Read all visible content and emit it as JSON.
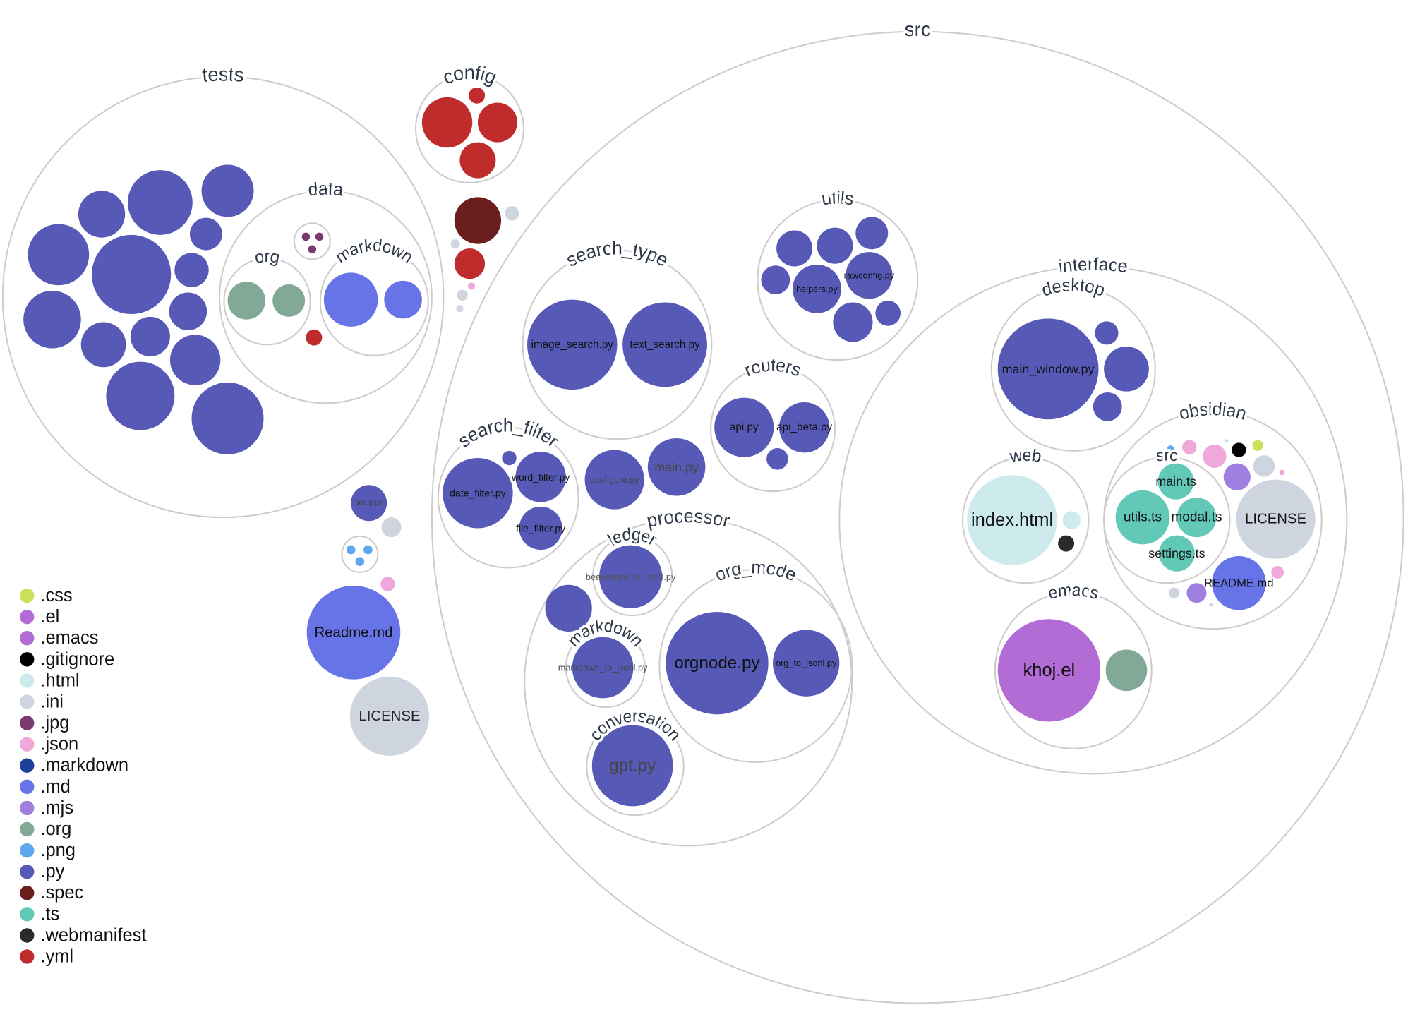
{
  "folders": {
    "tests": "tests",
    "data": "data",
    "data_org": "org",
    "data_markdown": "markdown",
    "config": "config",
    "src": "src",
    "search_type": "search_type",
    "utils": "utils",
    "routers": "routers",
    "search_filter": "search_filter",
    "processor": "processor",
    "ledger": "ledger",
    "proc_markdown": "markdown",
    "org_mode": "org_mode",
    "conversation": "conversation",
    "interface": "interface",
    "desktop": "desktop",
    "web": "web",
    "obsidian": "obsidian",
    "obsidian_src": "src",
    "emacs": "emacs"
  },
  "files": {
    "setup": "setup.py",
    "readme_root": "Readme.md",
    "license_root": "LICENSE",
    "image_search": "image_search.py",
    "text_search": "text_search.py",
    "helpers": "helpers.py",
    "rawconfig": "rawconfig.py",
    "api": "api.py",
    "api_beta": "api_beta.py",
    "date_filter": "date_filter.py",
    "word_filter": "word_filter.py",
    "file_filter": "file_filter.py",
    "configure": "configure.py",
    "main_py": "main.py",
    "beancount": "beancount_to_jsonl.py",
    "markdown_to_jsonl": "markdown_to_jsonl.py",
    "orgnode": "orgnode.py",
    "org_to_jsonl": "org_to_jsonl.py",
    "gpt": "gpt.py",
    "main_window": "main_window.py",
    "index_html": "index.html",
    "main_ts": "main.ts",
    "utils_ts": "utils.ts",
    "modal_ts": "modal.ts",
    "settings_ts": "settings.ts",
    "license_obsidian": "LICENSE",
    "readme_obsidian": "README.md",
    "khoj_el": "khoj.el"
  },
  "legend": [
    {
      "ext": ".css",
      "color": "#c8e05a"
    },
    {
      "ext": ".el",
      "color": "#b36bd6"
    },
    {
      "ext": ".emacs",
      "color": "#b36bd6"
    },
    {
      "ext": ".gitignore",
      "color": "#000000"
    },
    {
      "ext": ".html",
      "color": "#cdebed"
    },
    {
      "ext": ".ini",
      "color": "#cfd5df"
    },
    {
      "ext": ".jpg",
      "color": "#7a3a6e"
    },
    {
      "ext": ".json",
      "color": "#f0a8da"
    },
    {
      "ext": ".markdown",
      "color": "#1d3f99"
    },
    {
      "ext": ".md",
      "color": "#6674e8"
    },
    {
      "ext": ".mjs",
      "color": "#9f7fe0"
    },
    {
      "ext": ".org",
      "color": "#82a897"
    },
    {
      "ext": ".png",
      "color": "#5fa8ee"
    },
    {
      "ext": ".py",
      "color": "#5659b5"
    },
    {
      "ext": ".spec",
      "color": "#6b1e1e"
    },
    {
      "ext": ".ts",
      "color": "#62c8b8"
    },
    {
      "ext": ".webmanifest",
      "color": "#2a2a2a"
    },
    {
      "ext": ".yml",
      "color": "#c02c2c"
    }
  ]
}
